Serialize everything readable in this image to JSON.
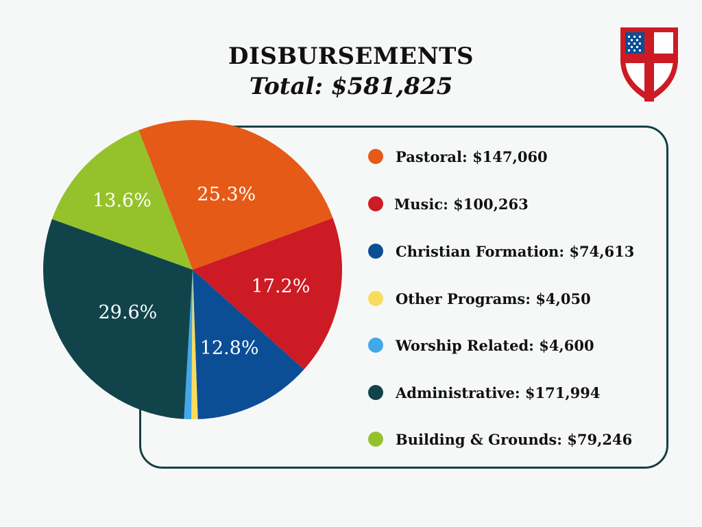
{
  "header": {
    "title": "DISBURSEMENTS",
    "subtitle": "Total: $581,825"
  },
  "legend": [
    {
      "label": "Pastoral: $147,060",
      "color": "#e55a17"
    },
    {
      "label": "Music: $100,263",
      "color": "#cc1b24"
    },
    {
      "label": "Christian Formation: $74,613",
      "color": "#0c4e95"
    },
    {
      "label": "Other Programs: $4,050",
      "color": "#f9dc5c"
    },
    {
      "label": "Worship Related: $4,600",
      "color": "#41a8ea"
    },
    {
      "label": "Administrative: $171,994",
      "color": "#11444a"
    },
    {
      "label": "Building & Grounds: $79,246",
      "color": "#95c22b"
    }
  ],
  "chart_data": {
    "type": "pie",
    "title": "DISBURSEMENTS",
    "subtitle": "Total: $581,825",
    "categories": [
      "Pastoral",
      "Music",
      "Christian Formation",
      "Other Programs",
      "Worship Related",
      "Administrative",
      "Building & Grounds"
    ],
    "values": [
      147060,
      100263,
      74613,
      4050,
      4600,
      171994,
      79246
    ],
    "percent_labels": [
      "25.3%",
      "17.2%",
      "12.8%",
      "",
      "",
      "29.6%",
      "13.6%"
    ],
    "colors": [
      "#e55a17",
      "#cc1b24",
      "#0c4e95",
      "#f9dc5c",
      "#41a8ea",
      "#11444a",
      "#95c22b"
    ],
    "legend_position": "right"
  }
}
